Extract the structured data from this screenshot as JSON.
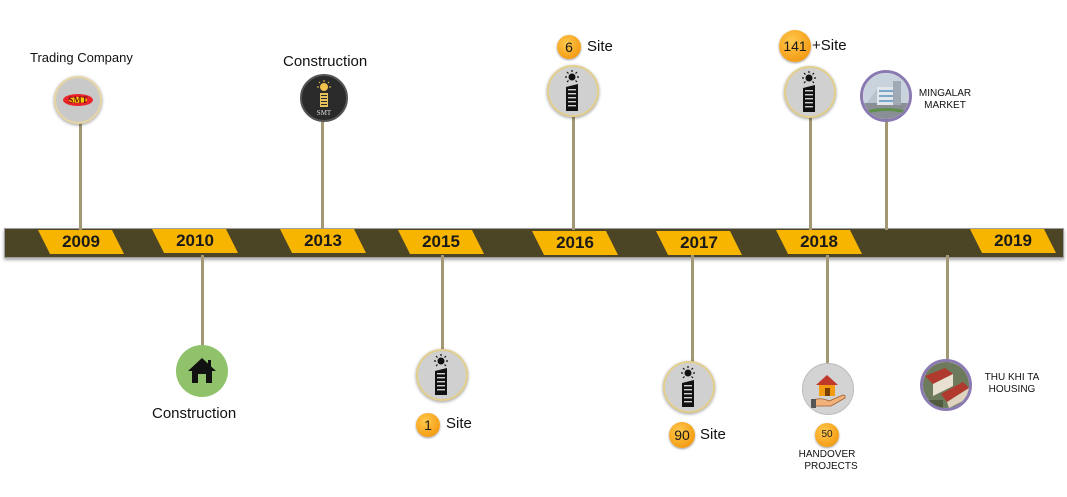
{
  "years": [
    "2009",
    "2010",
    "2013",
    "2015",
    "2016",
    "2017",
    "2018",
    "2019"
  ],
  "events": {
    "e2009": {
      "label": "Trading Company",
      "logo_text": "SMT"
    },
    "e2010": {
      "label": "Construction"
    },
    "e2013": {
      "label": "Construction",
      "logo_text": "SMT"
    },
    "e2015": {
      "count": "1",
      "unit": "Site"
    },
    "e2016": {
      "count": "6",
      "unit": "Site"
    },
    "e2017": {
      "count": "90",
      "unit": "Site"
    },
    "e2018_top": {
      "count": "141",
      "unit": "+Site"
    },
    "e2018_bottom": {
      "count": "50",
      "line1": "HANDOVER",
      "line2": "PROJECTS"
    },
    "mingalar": {
      "line1": "MINGALAR",
      "line2": "MARKET"
    },
    "thukhita": {
      "line1": "THU KHI TA",
      "line2": "HOUSING"
    }
  },
  "colors": {
    "bar": "#4b4526",
    "year_tag": "#f7b500",
    "badge": "#f5a623",
    "house_circle": "#8fc26b"
  },
  "icons": [
    "smt-logo-icon",
    "house-icon",
    "building-icon",
    "handover-house-icon",
    "market-photo-icon",
    "housing-photo-icon"
  ]
}
